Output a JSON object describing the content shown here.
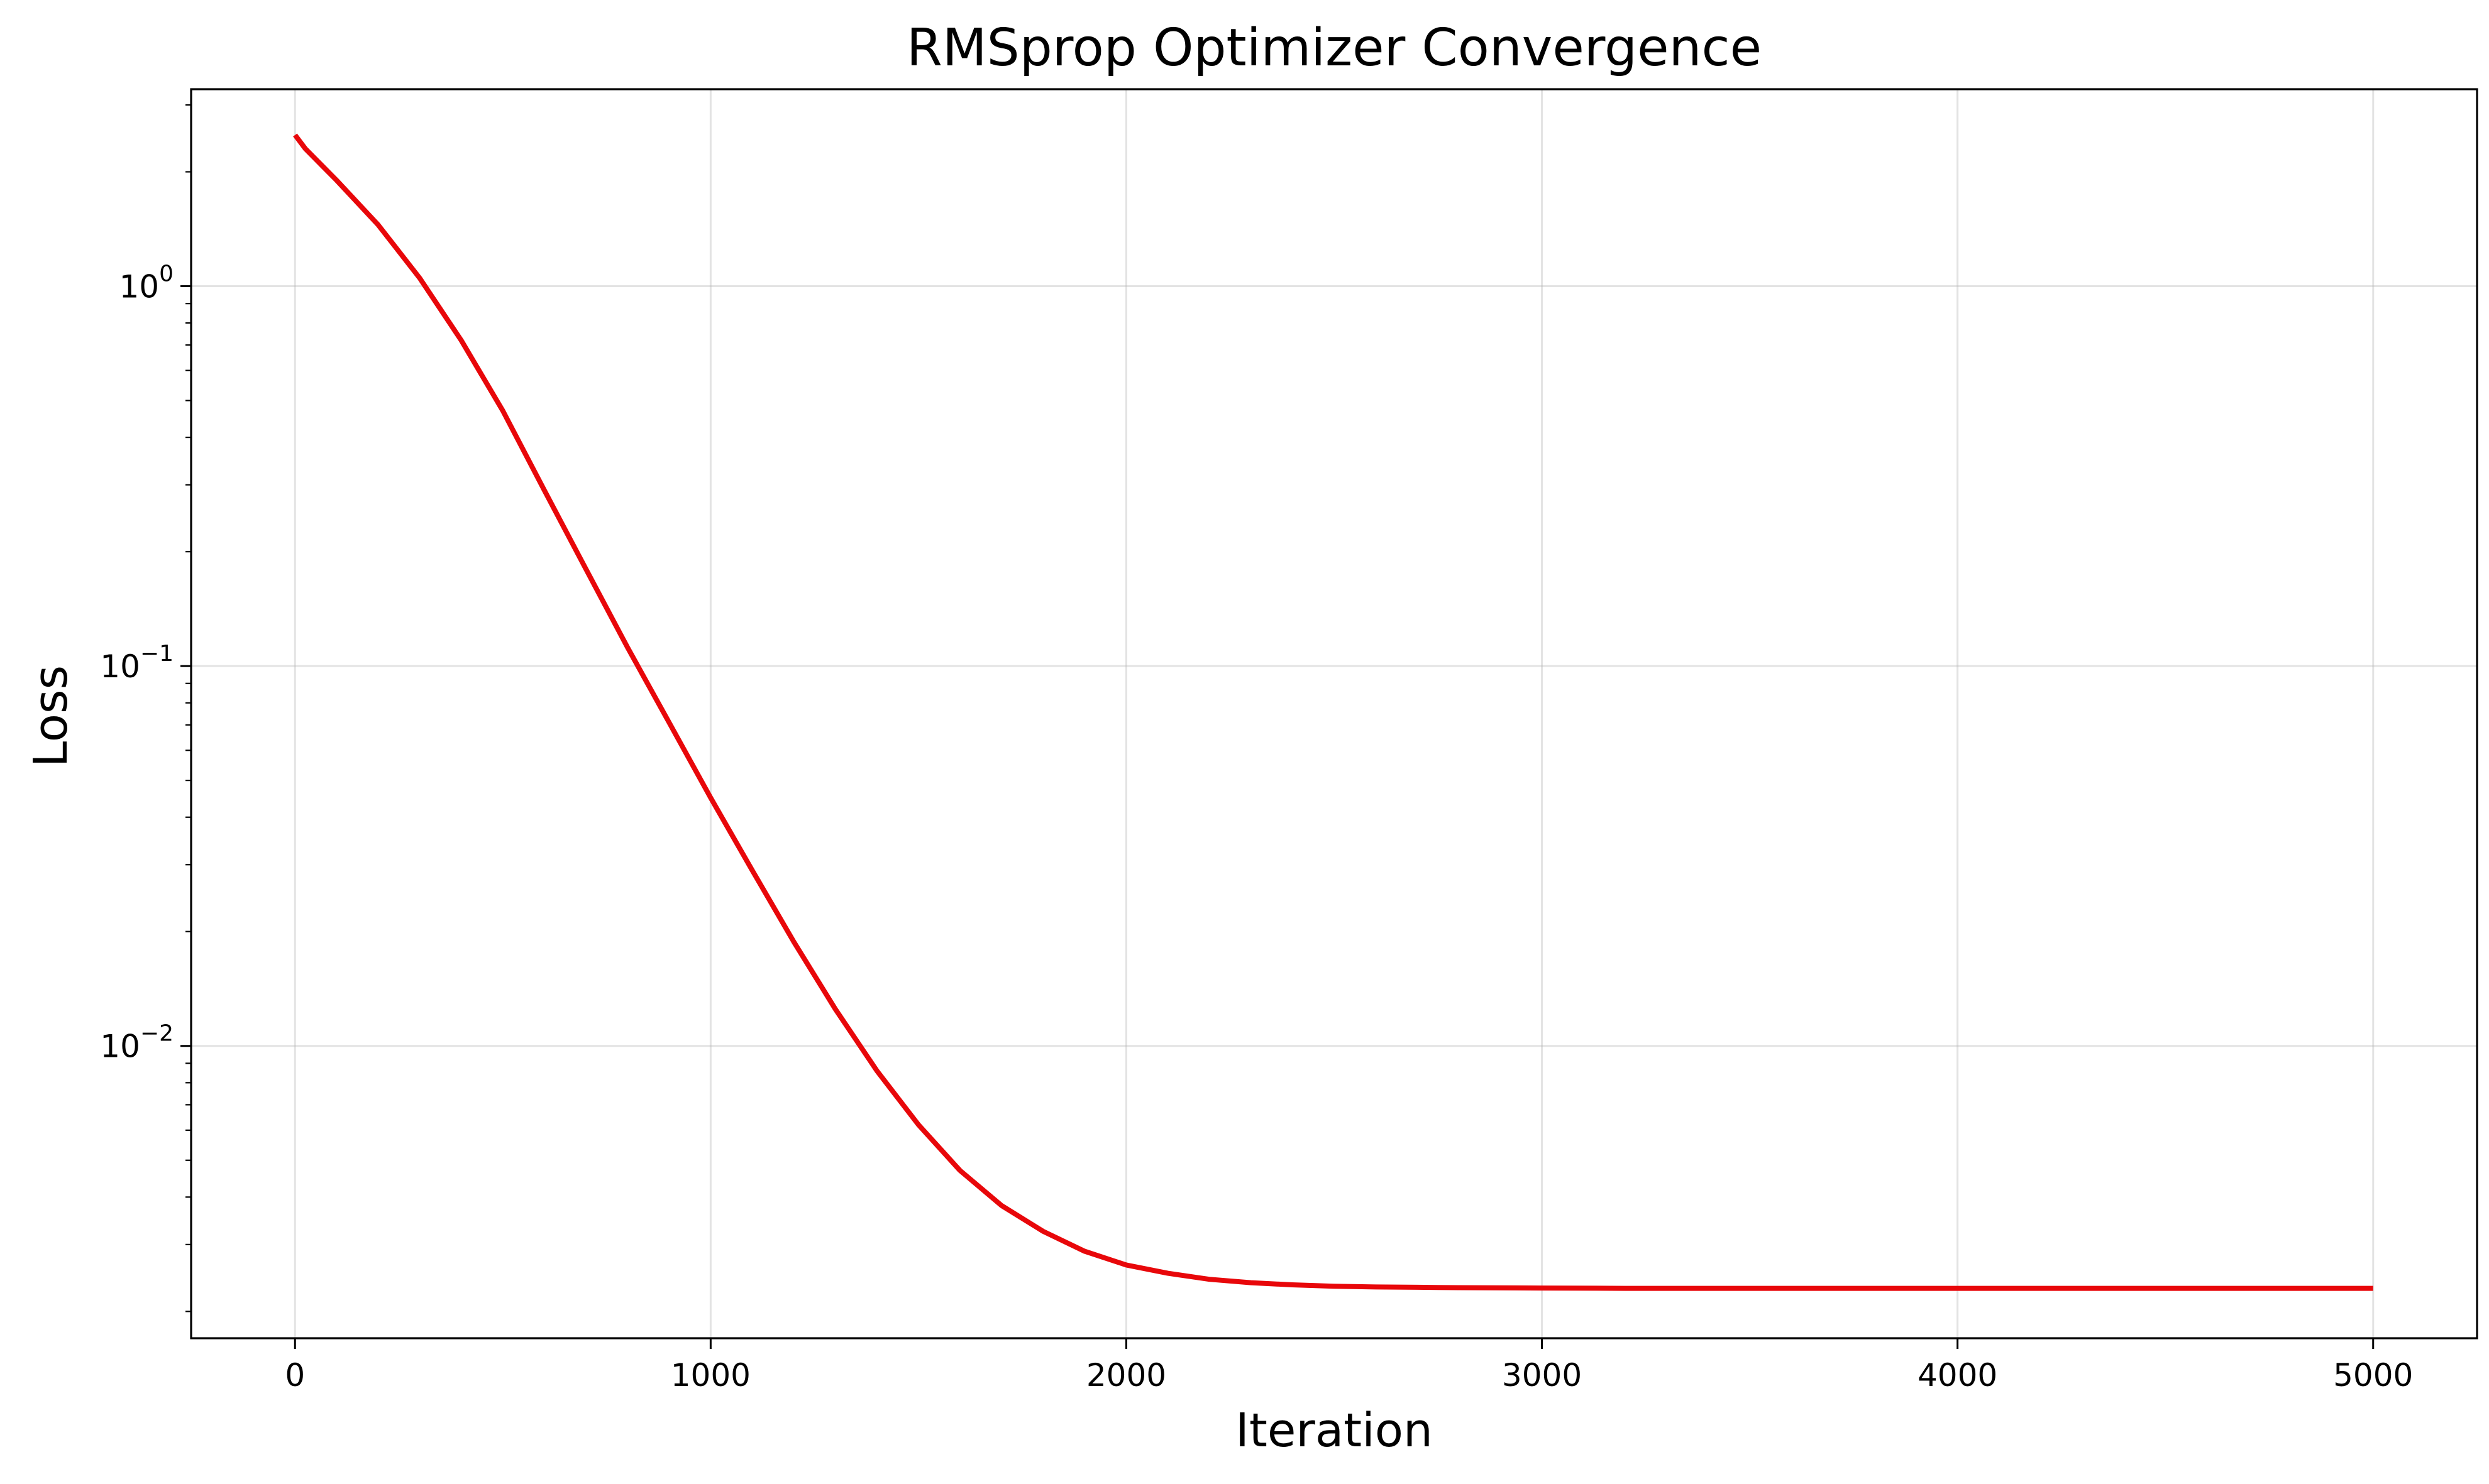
{
  "chart_data": {
    "type": "line",
    "title": "RMSprop Optimizer Convergence",
    "xlabel": "Iteration",
    "ylabel": "Loss",
    "x_scale": "linear",
    "y_scale": "log",
    "xlim": [
      -250,
      5250
    ],
    "ylim": [
      0.0017,
      3.3
    ],
    "grid": true,
    "x_ticks": [
      {
        "value": 0,
        "label": "0"
      },
      {
        "value": 1000,
        "label": "1000"
      },
      {
        "value": 2000,
        "label": "2000"
      },
      {
        "value": 3000,
        "label": "3000"
      },
      {
        "value": 4000,
        "label": "4000"
      },
      {
        "value": 5000,
        "label": "5000"
      }
    ],
    "y_ticks": [
      {
        "value": 1,
        "base": "10",
        "exp": "0"
      },
      {
        "value": 0.1,
        "base": "10",
        "exp": "−1"
      },
      {
        "value": 0.01,
        "base": "10",
        "exp": "−2"
      }
    ],
    "series": [
      {
        "color": "#e8070a",
        "x": [
          0,
          25,
          100,
          200,
          300,
          400,
          500,
          600,
          700,
          800,
          900,
          1000,
          1100,
          1200,
          1300,
          1400,
          1500,
          1600,
          1700,
          1800,
          1900,
          2000,
          2100,
          2200,
          2300,
          2400,
          2500,
          2600,
          2700,
          2800,
          3000,
          3200,
          3500,
          4000,
          4500,
          5000
        ],
        "y": [
          2.5,
          2.3,
          1.9,
          1.45,
          1.05,
          0.72,
          0.47,
          0.29,
          0.18,
          0.112,
          0.071,
          0.045,
          0.029,
          0.0188,
          0.0125,
          0.0086,
          0.0062,
          0.0047,
          0.0038,
          0.00325,
          0.00288,
          0.00265,
          0.00252,
          0.00243,
          0.00238,
          0.00235,
          0.00233,
          0.00232,
          0.002315,
          0.00231,
          0.002305,
          0.0023,
          0.0023,
          0.0023,
          0.0023,
          0.0023
        ]
      }
    ]
  }
}
